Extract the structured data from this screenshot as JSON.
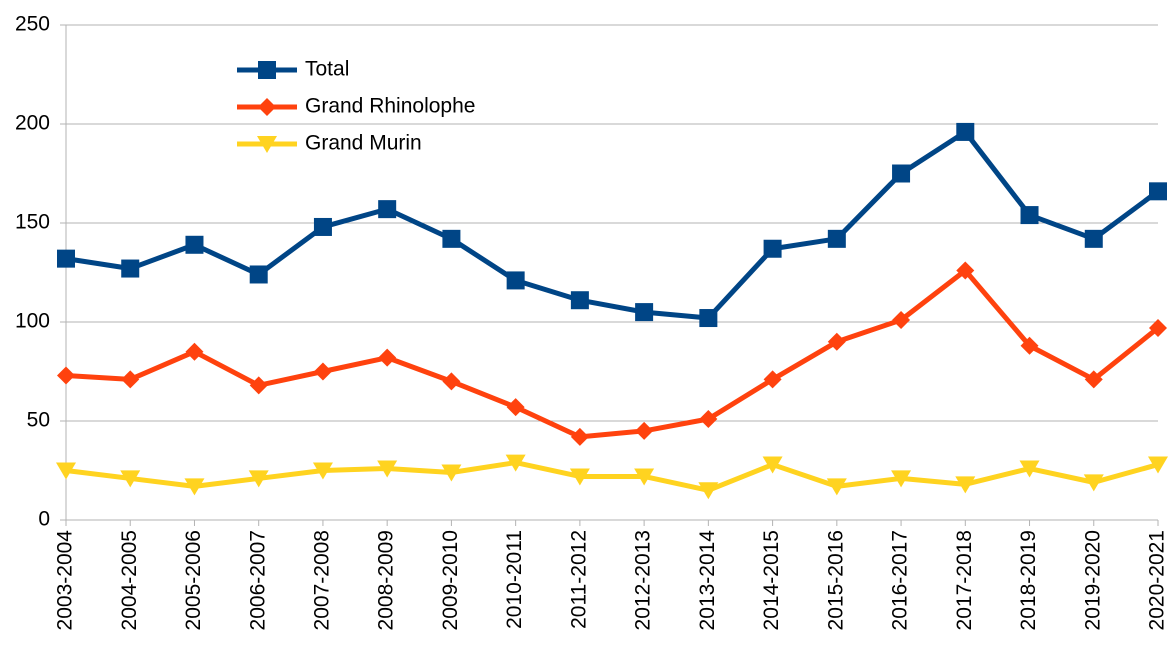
{
  "chart_data": {
    "type": "line",
    "categories": [
      "2003-2004",
      "2004-2005",
      "2005-2006",
      "2006-2007",
      "2007-2008",
      "2008-2009",
      "2009-2010",
      "2010-2011",
      "2011-2012",
      "2012-2013",
      "2013-2014",
      "2014-2015",
      "2015-2016",
      "2016-2017",
      "2017-2018",
      "2018-2019",
      "2019-2020",
      "2020-2021"
    ],
    "series": [
      {
        "name": "Total",
        "color": "#004586",
        "marker": "square",
        "values": [
          132,
          127,
          139,
          124,
          148,
          157,
          142,
          121,
          111,
          105,
          102,
          137,
          142,
          175,
          196,
          154,
          142,
          166
        ]
      },
      {
        "name": "Grand Rhinolophe",
        "color": "#ff420e",
        "marker": "diamond",
        "values": [
          73,
          71,
          85,
          68,
          75,
          82,
          70,
          57,
          42,
          45,
          51,
          71,
          90,
          101,
          126,
          88,
          71,
          97
        ]
      },
      {
        "name": "Grand Murin",
        "color": "#ffd320",
        "marker": "triangle-down",
        "values": [
          25,
          21,
          17,
          21,
          25,
          26,
          24,
          29,
          22,
          22,
          15,
          28,
          17,
          21,
          18,
          26,
          19,
          28
        ]
      }
    ],
    "ylim": [
      0,
      250
    ],
    "yticks": [
      0,
      50,
      100,
      150,
      200,
      250
    ],
    "grid": true,
    "legend": "upper left"
  }
}
